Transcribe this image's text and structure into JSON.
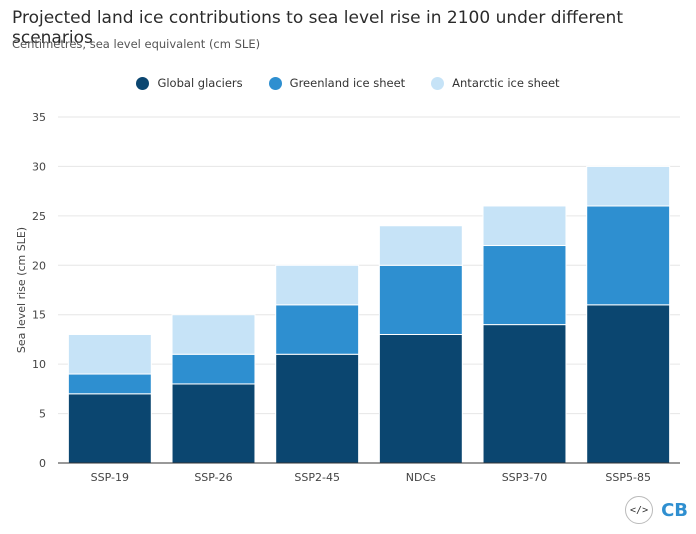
{
  "header": {
    "title": "Projected land ice contributions to sea level rise in 2100 under different scenarios",
    "subtitle": "Centimetres, sea level equivalent (cm SLE)"
  },
  "colors": {
    "glaciers": "#0b4670",
    "greenland": "#2e8fd0",
    "antarctic": "#c6e3f7",
    "grid": "#e6e6e6",
    "axis": "#333333"
  },
  "chart_data": {
    "type": "bar",
    "stacked": true,
    "title": "",
    "xlabel": "",
    "ylabel": "Sea level rise (cm SLE)",
    "ylim": [
      0,
      35
    ],
    "yticks": [
      0,
      5,
      10,
      15,
      20,
      25,
      30,
      35
    ],
    "grid": true,
    "legend_position": "top-center",
    "categories": [
      "SSP-19",
      "SSP-26",
      "SSP2-45",
      "NDCs",
      "SSP3-70",
      "SSP5-85"
    ],
    "series": [
      {
        "name": "Global glaciers",
        "values": [
          7,
          8,
          11,
          13,
          14,
          16
        ]
      },
      {
        "name": "Greenland ice sheet",
        "values": [
          2,
          3,
          5,
          7,
          8,
          10
        ]
      },
      {
        "name": "Antarctic ice sheet",
        "values": [
          4,
          4,
          4,
          4,
          4,
          4
        ]
      }
    ]
  },
  "branding": {
    "code_badge": "</>",
    "logo": "CB"
  }
}
